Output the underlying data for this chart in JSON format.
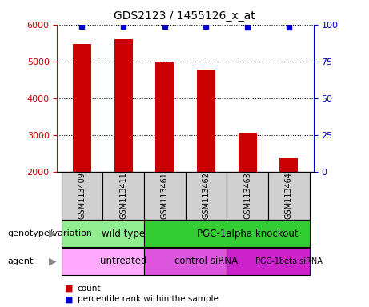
{
  "title": "GDS2123 / 1455126_x_at",
  "samples": [
    "GSM113409",
    "GSM113411",
    "GSM113461",
    "GSM113462",
    "GSM113463",
    "GSM113464"
  ],
  "counts": [
    5480,
    5600,
    4980,
    4780,
    3060,
    2380
  ],
  "percentile_ranks": [
    99,
    99,
    99,
    99,
    98,
    98
  ],
  "ylim_left": [
    2000,
    6000
  ],
  "ylim_right": [
    0,
    100
  ],
  "yticks_left": [
    2000,
    3000,
    4000,
    5000,
    6000
  ],
  "yticks_right": [
    0,
    25,
    50,
    75,
    100
  ],
  "bar_color": "#cc0000",
  "dot_color": "#0000cc",
  "bar_bottom": 2000,
  "genotype_groups": [
    {
      "label": "wild type",
      "start": 0,
      "end": 2,
      "color": "#90ee90"
    },
    {
      "label": "PGC-1alpha knockout",
      "start": 2,
      "end": 6,
      "color": "#33cc33"
    }
  ],
  "agent_groups": [
    {
      "label": "untreated",
      "start": 0,
      "end": 2,
      "color": "#ffaaff"
    },
    {
      "label": "control siRNA",
      "start": 2,
      "end": 4,
      "color": "#dd55dd"
    },
    {
      "label": "PGC-1beta siRNA",
      "start": 4,
      "end": 6,
      "color": "#cc22cc"
    }
  ],
  "legend_count_color": "#cc0000",
  "legend_dot_color": "#0000cc",
  "left_label_color": "#cc0000",
  "right_label_color": "#0000cc",
  "sample_box_color": "#d0d0d0",
  "genotype_label": "genotype/variation",
  "agent_label": "agent",
  "legend_count": "count",
  "legend_percentile": "percentile rank within the sample"
}
